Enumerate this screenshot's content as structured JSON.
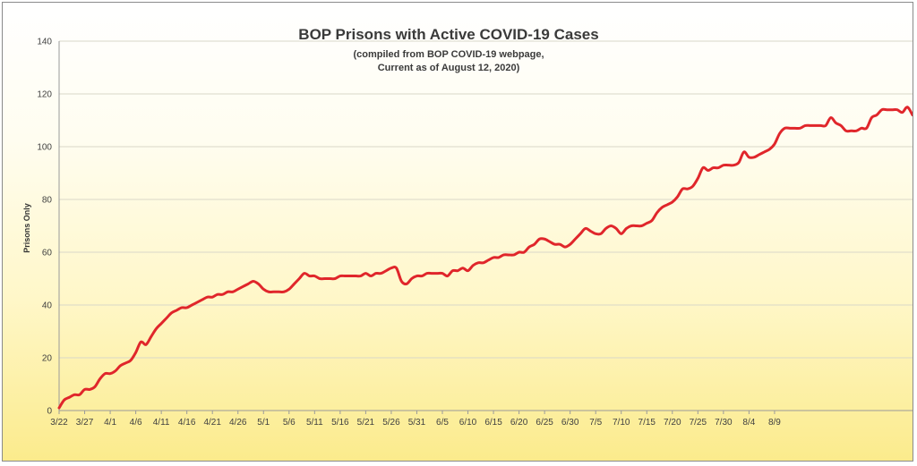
{
  "chart_data": {
    "type": "line",
    "title": "BOP Prisons with Active COVID-19 Cases",
    "subtitle_lines": [
      "(compiled from BOP COVID-19 webpage,",
      "Current as of August 12, 2020)"
    ],
    "xlabel": "",
    "ylabel": "Prisons Only",
    "ylim": [
      0,
      140
    ],
    "yticks": [
      0,
      20,
      40,
      60,
      80,
      100,
      120,
      140
    ],
    "x_tick_labels": [
      "3/22",
      "3/27",
      "4/1",
      "4/6",
      "4/11",
      "4/16",
      "4/21",
      "4/26",
      "5/1",
      "5/6",
      "5/11",
      "5/16",
      "5/21",
      "5/26",
      "5/31",
      "6/5",
      "6/10",
      "6/15",
      "6/20",
      "6/25",
      "6/30",
      "7/5",
      "7/10",
      "7/15",
      "7/20",
      "7/25",
      "7/30",
      "8/4",
      "8/9"
    ],
    "grid": "horizontal",
    "legend": "none",
    "colors": {
      "line": "#e0262b",
      "grid": "#d8d8c8",
      "axis": "#9a9a9a"
    },
    "series": [
      {
        "values": [
          1,
          4,
          5,
          6,
          6,
          8,
          8,
          9,
          12,
          14,
          14,
          15,
          17,
          18,
          19,
          22,
          26,
          25,
          28,
          31,
          33,
          35,
          37,
          38,
          39,
          39,
          40,
          41,
          42,
          43,
          43,
          44,
          44,
          45,
          45,
          46,
          47,
          48,
          49,
          48,
          46,
          45,
          45,
          45,
          45,
          46,
          48,
          50,
          52,
          51,
          51,
          50,
          50,
          50,
          50,
          51,
          51,
          51,
          51,
          51,
          52,
          51,
          52,
          52,
          53,
          54,
          54,
          49,
          48,
          50,
          51,
          51,
          52,
          52,
          52,
          52,
          51,
          53,
          53,
          54,
          53,
          55,
          56,
          56,
          57,
          58,
          58,
          59,
          59,
          59,
          60,
          60,
          62,
          63,
          65,
          65,
          64,
          63,
          63,
          62,
          63,
          65,
          67,
          69,
          68,
          67,
          67,
          69,
          70,
          69,
          67,
          69,
          70,
          70,
          70,
          71,
          72,
          75,
          77,
          78,
          79,
          81,
          84,
          84,
          85,
          88,
          92,
          91,
          92,
          92,
          93,
          93,
          93,
          94,
          98,
          96,
          96,
          97,
          98,
          99,
          101,
          105,
          107,
          107,
          107,
          107,
          108,
          108,
          108,
          108,
          108,
          111,
          109,
          108,
          106,
          106,
          106,
          107,
          107,
          111,
          112,
          114,
          114,
          114,
          114,
          113,
          115,
          112
        ]
      }
    ]
  }
}
